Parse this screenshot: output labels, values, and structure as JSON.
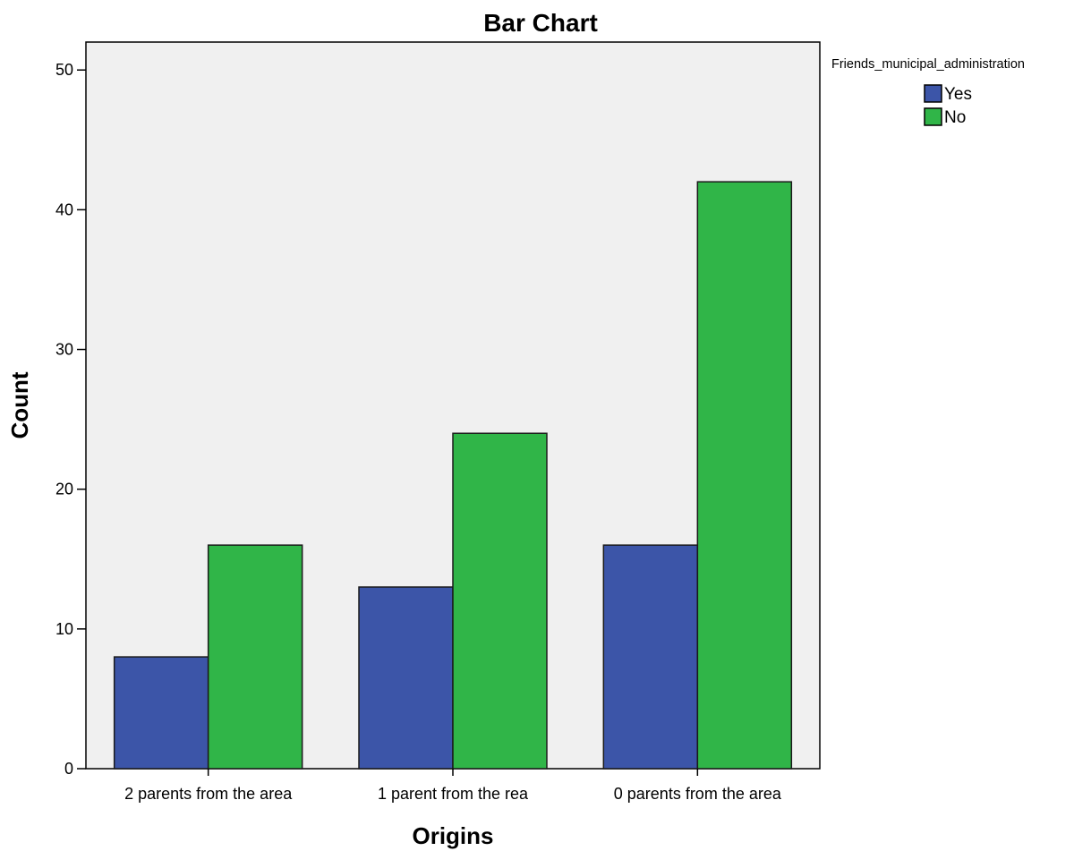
{
  "chart_data": {
    "type": "bar",
    "title": "Bar Chart",
    "xlabel": "Origins",
    "ylabel": "Count",
    "categories": [
      "2 parents from the area",
      "1 parent from the rea",
      "0 parents from the area"
    ],
    "series": [
      {
        "name": "Yes",
        "values": [
          8,
          13,
          16
        ],
        "color": "#3c55a8"
      },
      {
        "name": "No",
        "values": [
          16,
          24,
          42
        ],
        "color": "#30b548"
      }
    ],
    "ylim": [
      0,
      52
    ],
    "yticks": [
      0,
      10,
      20,
      30,
      40,
      50
    ],
    "legend": {
      "title": "Friends_municipal_administration",
      "placement": "top-right, outside plot"
    },
    "grid": false,
    "plot_background": "#f0f0f0",
    "bar_stroke": "#1a1a1a"
  }
}
